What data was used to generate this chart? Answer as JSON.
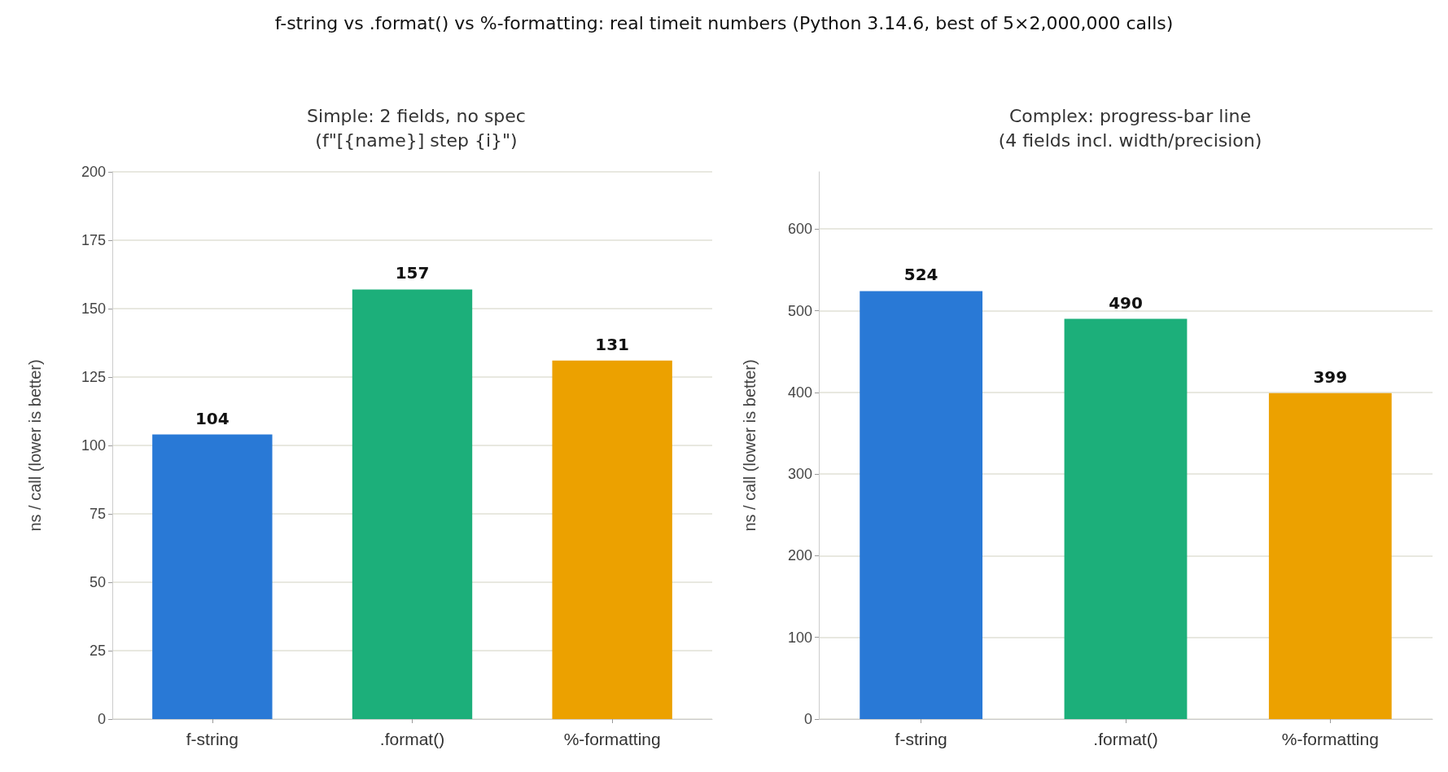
{
  "chart_data": [
    {
      "type": "bar",
      "title": "Simple: 2 fields, no spec\n(f\"[{name}] step {i}\")",
      "annotations": [
        "f-string vs .format() vs %-formatting: real timeit numbers (Python 3.14.6, best of 5×2,000,000 calls)"
      ],
      "ylabel": "ns / call (lower is better)",
      "categories": [
        "f-string",
        ".format()",
        "%-formatting"
      ],
      "values": [
        104,
        157,
        131
      ],
      "colors": [
        "#2979d6",
        "#1caf7a",
        "#eca100"
      ],
      "ylim": [
        0,
        200
      ],
      "yticks": [
        0,
        25,
        50,
        75,
        100,
        125,
        150,
        175,
        200
      ],
      "grid": "y",
      "data_labels": true
    },
    {
      "type": "bar",
      "title": "Complex: progress-bar line\n(4 fields incl. width/precision)",
      "ylabel": "ns / call (lower is better)",
      "categories": [
        "f-string",
        ".format()",
        "%-formatting"
      ],
      "values": [
        524,
        490,
        399
      ],
      "colors": [
        "#2979d6",
        "#1caf7a",
        "#eca100"
      ],
      "ylim": [
        0,
        670
      ],
      "yticks": [
        0,
        100,
        200,
        300,
        400,
        500,
        600
      ],
      "grid": "y",
      "data_labels": true
    }
  ]
}
